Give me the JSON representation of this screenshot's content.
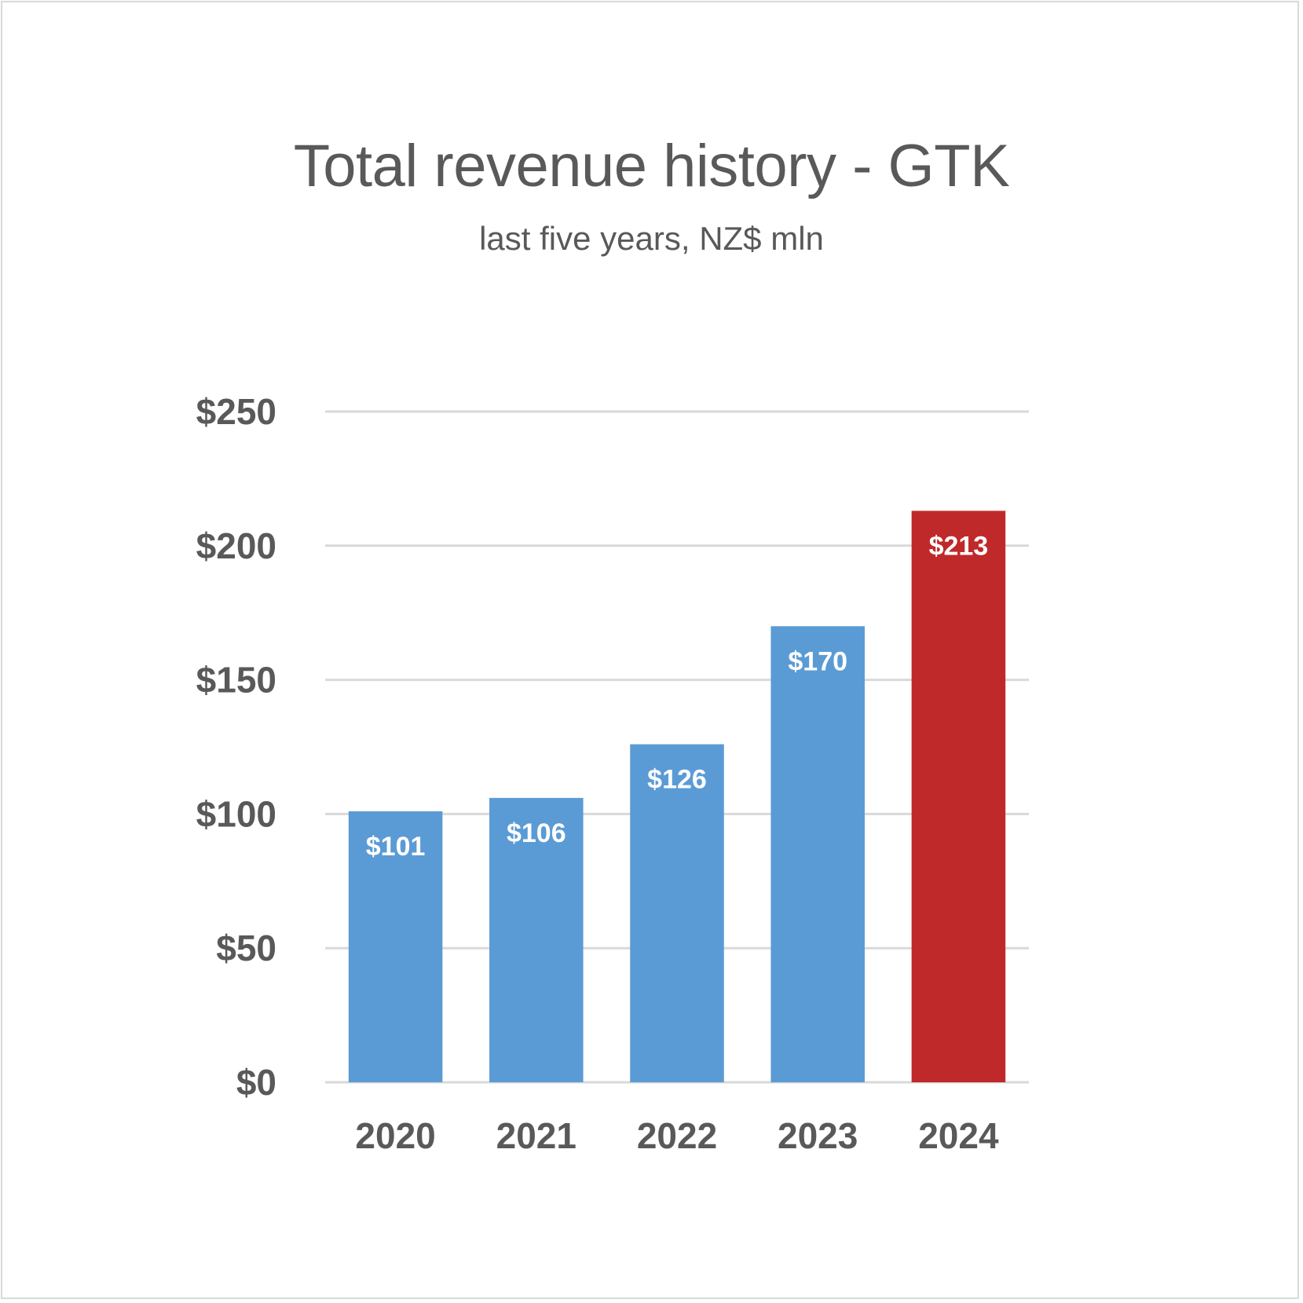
{
  "chart_data": {
    "type": "bar",
    "title": "Total revenue history - GTK",
    "subtitle": "last five years, NZ$ mln",
    "xlabel": "",
    "ylabel": "",
    "categories": [
      "2020",
      "2021",
      "2022",
      "2023",
      "2024"
    ],
    "values": [
      101,
      106,
      126,
      170,
      213
    ],
    "data_labels": [
      "$101",
      "$106",
      "$126",
      "$170",
      "$213"
    ],
    "bar_colors": [
      "#5B9BD5",
      "#5B9BD5",
      "#5B9BD5",
      "#5B9BD5",
      "#C0292A"
    ],
    "highlight_category": "2024",
    "ylim": [
      0,
      250
    ],
    "yticks": [
      0,
      50,
      100,
      150,
      200,
      250
    ],
    "ytick_labels": [
      "$0",
      "$50",
      "$100",
      "$150",
      "$200",
      "$250"
    ],
    "grid": true,
    "legend": "none",
    "colors": {
      "primary_bar": "#5B9BD5",
      "highlight_bar": "#C0292A",
      "text": "#595959",
      "gridline": "#d9d9d9",
      "data_label": "#FFFFFF"
    }
  }
}
